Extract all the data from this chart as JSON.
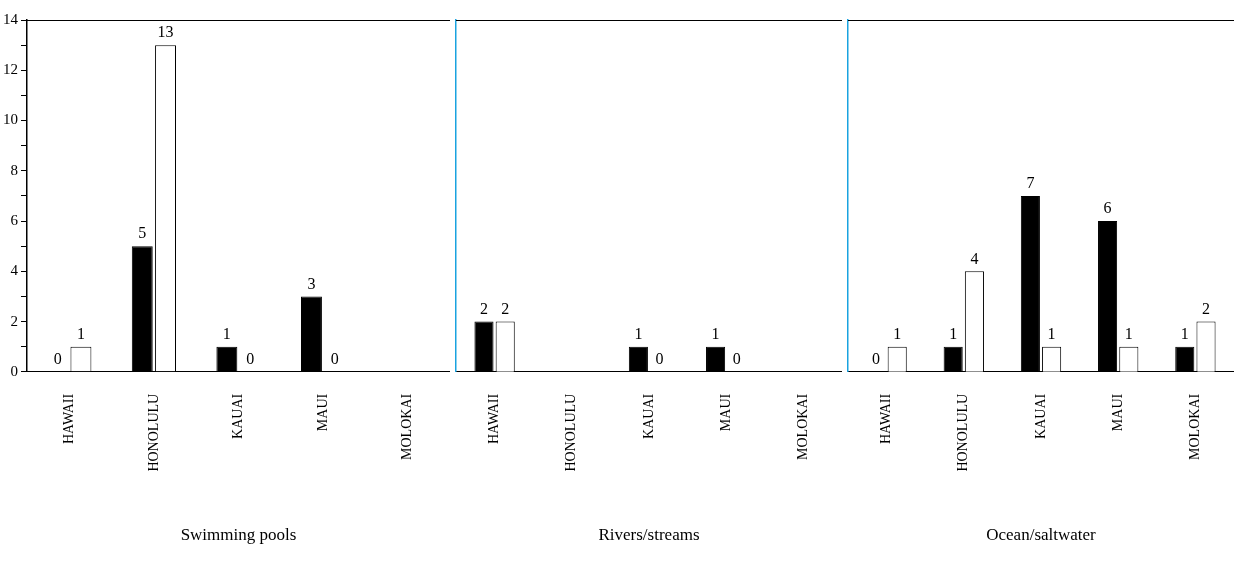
{
  "chart_data": [
    {
      "type": "bar",
      "xlabel": "Swimming pools",
      "categories": [
        "HAWAII",
        "HONOLULU",
        "KAUAI",
        "MAUI",
        "MOLOKAI"
      ],
      "series": [
        {
          "color": "#000000",
          "values": [
            0,
            5,
            1,
            3,
            null
          ]
        },
        {
          "color": "#ffffff",
          "values": [
            1,
            13,
            0,
            0,
            null
          ]
        }
      ],
      "ylim": [
        0,
        14
      ],
      "yticks": [
        0,
        {
          "value": 1,
          "label": null
        },
        2,
        {
          "value": 3,
          "label": null
        },
        4,
        {
          "value": 5,
          "label": null
        },
        6,
        {
          "value": 7,
          "label": null
        },
        8,
        {
          "value": 9,
          "label": null
        },
        10,
        {
          "value": 11,
          "label": null
        },
        12,
        {
          "value": 13,
          "label": null
        },
        14
      ],
      "data_labels": true
    },
    {
      "type": "bar",
      "xlabel": "Rivers/streams",
      "categories": [
        "HAWAII",
        "HONOLULU",
        "KAUAI",
        "MAUI",
        "MOLOKAI"
      ],
      "series": [
        {
          "color": "#000000",
          "values": [
            2,
            null,
            1,
            1,
            null
          ]
        },
        {
          "color": "#ffffff",
          "values": [
            2,
            null,
            0,
            0,
            null
          ]
        }
      ],
      "ylim": [
        0,
        14
      ],
      "data_labels": true,
      "tick_labels": "x"
    },
    {
      "type": "bar",
      "xlabel": "Ocean/saltwater",
      "categories": [
        "HAWAII",
        "HONOLULU",
        "KAUAI",
        "MAUI",
        "MOLOKAI"
      ],
      "series": [
        {
          "color": "#000000",
          "values": [
            0,
            1,
            7,
            6,
            1
          ]
        },
        {
          "color": "#ffffff",
          "values": [
            1,
            4,
            1,
            1,
            2
          ]
        }
      ],
      "ylim": [
        0,
        14
      ],
      "data_labels": true,
      "tick_labels": "x"
    }
  ]
}
